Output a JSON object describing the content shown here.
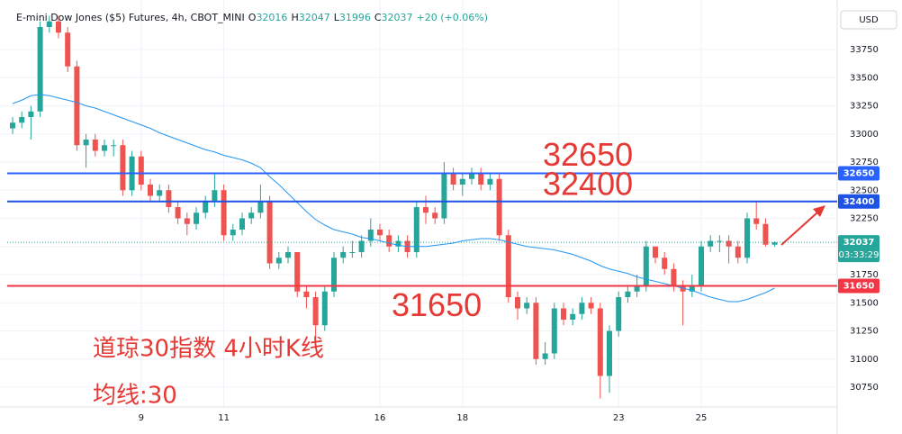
{
  "chart_data": {
    "type": "candlestick",
    "title": "E-mini Dow Jones ($5) Futures, 4h, CBOT_MINI",
    "ohlc_labels": [
      "O",
      "H",
      "L",
      "C"
    ],
    "change": "+20 (+0.06%)",
    "currency": "USD",
    "countdown": "03:33:29",
    "up_color": "#26a69a",
    "down_color": "#ef5350",
    "x": [
      null,
      null,
      null,
      null,
      null,
      null,
      null,
      null,
      null,
      null,
      null,
      null,
      null,
      null,
      "9",
      null,
      null,
      null,
      null,
      null,
      null,
      null,
      null,
      "11",
      null,
      null,
      null,
      null,
      null,
      null,
      null,
      null,
      null,
      null,
      null,
      null,
      null,
      null,
      null,
      null,
      "16",
      null,
      null,
      null,
      null,
      null,
      null,
      null,
      null,
      "18",
      null,
      null,
      null,
      null,
      null,
      null,
      null,
      null,
      null,
      null,
      null,
      null,
      null,
      null,
      null,
      null,
      "23",
      null,
      null,
      null,
      null,
      null,
      null,
      null,
      null,
      "25",
      null,
      null,
      null,
      null,
      null,
      null,
      null,
      null
    ],
    "open": [
      33050,
      33100,
      33150,
      33200,
      33950,
      34000,
      33900,
      33600,
      32900,
      32950,
      32850,
      32900,
      32900,
      32500,
      32800,
      32550,
      32450,
      32500,
      32350,
      32250,
      32200,
      32300,
      32400,
      32500,
      32100,
      32150,
      32250,
      32300,
      32400,
      31850,
      31900,
      31950,
      31600,
      31550,
      31300,
      31600,
      31900,
      31950,
      31950,
      32050,
      32150,
      32100,
      32000,
      32050,
      31950,
      32350,
      32300,
      32250,
      32650,
      32550,
      32600,
      32650,
      32550,
      32600,
      32100,
      31550,
      31450,
      31500,
      31000,
      31050,
      31450,
      31350,
      31400,
      31500,
      31450,
      30850,
      31250,
      31550,
      31600,
      31650,
      32000,
      31900,
      31800,
      31650,
      31600,
      31650,
      32000,
      32050,
      32050,
      32000,
      31900,
      32250,
      32200,
      32016
    ],
    "high": [
      33150,
      33200,
      33250,
      34000,
      34050,
      34050,
      33950,
      33650,
      33000,
      33000,
      32950,
      32950,
      32950,
      32850,
      32850,
      32600,
      32550,
      32550,
      32400,
      32300,
      32350,
      32450,
      32650,
      32550,
      32200,
      32300,
      32350,
      32550,
      32450,
      31950,
      32000,
      31950,
      31650,
      31600,
      31650,
      31950,
      32000,
      32050,
      32100,
      32250,
      32200,
      32150,
      32100,
      32100,
      32400,
      32450,
      32350,
      32750,
      32700,
      32650,
      32700,
      32700,
      32650,
      32650,
      32150,
      31600,
      31550,
      31550,
      31150,
      31500,
      31500,
      31450,
      31550,
      31550,
      31500,
      31300,
      31600,
      31650,
      31750,
      32050,
      32000,
      31950,
      31850,
      31700,
      31750,
      32050,
      32100,
      32100,
      32100,
      32050,
      32300,
      32400,
      32250,
      32047
    ],
    "low": [
      33000,
      33050,
      32950,
      33150,
      33900,
      33850,
      33550,
      32850,
      32700,
      32800,
      32800,
      32800,
      32450,
      32450,
      32500,
      32400,
      32400,
      32300,
      32200,
      32100,
      32150,
      32250,
      32350,
      32050,
      32050,
      32100,
      32200,
      32250,
      31800,
      31800,
      31850,
      31550,
      31450,
      31200,
      31250,
      31550,
      31850,
      31900,
      31900,
      32000,
      32050,
      31950,
      31950,
      31900,
      31900,
      32200,
      32200,
      32200,
      32500,
      32450,
      32550,
      32500,
      32500,
      32050,
      31500,
      31350,
      31400,
      30950,
      30950,
      31000,
      31300,
      31300,
      31350,
      31400,
      30650,
      30700,
      31200,
      31500,
      31550,
      31600,
      31850,
      31750,
      31600,
      31300,
      31550,
      31600,
      31950,
      31950,
      31850,
      31850,
      31850,
      32150,
      32000,
      31996
    ],
    "close": [
      33100,
      33150,
      33200,
      33950,
      34000,
      33900,
      33600,
      32900,
      32950,
      32850,
      32900,
      32900,
      32500,
      32800,
      32550,
      32450,
      32500,
      32350,
      32250,
      32200,
      32300,
      32400,
      32500,
      32100,
      32150,
      32250,
      32300,
      32400,
      31850,
      31900,
      31950,
      31600,
      31550,
      31300,
      31600,
      31900,
      31950,
      31950,
      32050,
      32150,
      32100,
      32000,
      32050,
      31950,
      32350,
      32300,
      32250,
      32650,
      32550,
      32600,
      32650,
      32550,
      32600,
      32100,
      31550,
      31450,
      31500,
      31000,
      31050,
      31450,
      31350,
      31400,
      31500,
      31450,
      30850,
      31250,
      31550,
      31600,
      31650,
      32000,
      31900,
      31800,
      31650,
      31600,
      31650,
      32000,
      32050,
      32050,
      32000,
      31900,
      32250,
      32200,
      32016,
      32037
    ],
    "ma": {
      "color": "#2196f3",
      "values": [
        33270,
        33300,
        33340,
        33350,
        33340,
        33320,
        33300,
        33280,
        33250,
        33230,
        33200,
        33170,
        33140,
        33110,
        33080,
        33050,
        33010,
        32980,
        32950,
        32920,
        32890,
        32860,
        32840,
        32810,
        32790,
        32770,
        32740,
        32700,
        32620,
        32550,
        32470,
        32390,
        32310,
        32240,
        32190,
        32150,
        32130,
        32110,
        32080,
        32070,
        32050,
        32030,
        32010,
        32000,
        32000,
        32000,
        32010,
        32020,
        32030,
        32050,
        32060,
        32070,
        32070,
        32060,
        32040,
        32020,
        32000,
        31990,
        31980,
        31970,
        31950,
        31930,
        31900,
        31870,
        31830,
        31800,
        31780,
        31760,
        31730,
        31710,
        31690,
        31670,
        31650,
        31630,
        31610,
        31580,
        31550,
        31530,
        31510,
        31510,
        31530,
        31560,
        31590,
        31630
      ]
    },
    "hlines": [
      {
        "value": 32650,
        "color": "#2962ff"
      },
      {
        "value": 32400,
        "color": "#1e53e5"
      },
      {
        "value": 31650,
        "color": "#f23645"
      }
    ],
    "annotations": [
      "道琼30指数 4小时K线",
      "均线:30"
    ],
    "ylim": [
      30430,
      34110
    ],
    "yticks": [
      30750,
      31000,
      31250,
      31500,
      31750,
      32000,
      32250,
      32500,
      32750,
      33000,
      33250,
      33500,
      33750
    ],
    "grid": true
  }
}
